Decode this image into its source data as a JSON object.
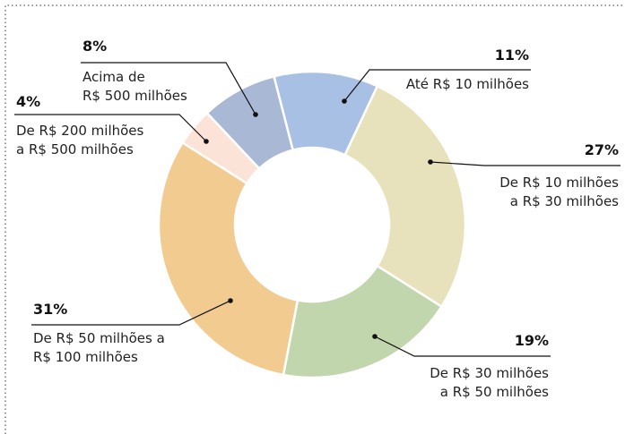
{
  "chart_data": {
    "type": "donut",
    "categories": [
      "Até R$ 10 milhões",
      "De R$ 10 milhões\na R$ 30 milhões",
      "De R$ 30 milhões\na R$ 50 milhões",
      "De R$ 50 milhões a\nR$ 100 milhões",
      "De R$ 200 milhões\na R$ 500 milhões",
      "Acima de\nR$ 500 milhões"
    ],
    "values": [
      11,
      27,
      19,
      31,
      4,
      8
    ],
    "value_labels": [
      "11%",
      "27%",
      "19%",
      "31%",
      "4%",
      "8%"
    ],
    "colors": [
      "#a8c0e4",
      "#e8e2bc",
      "#c2d6ad",
      "#f2cb90",
      "#fce3d8",
      "#a9b8d4"
    ]
  }
}
